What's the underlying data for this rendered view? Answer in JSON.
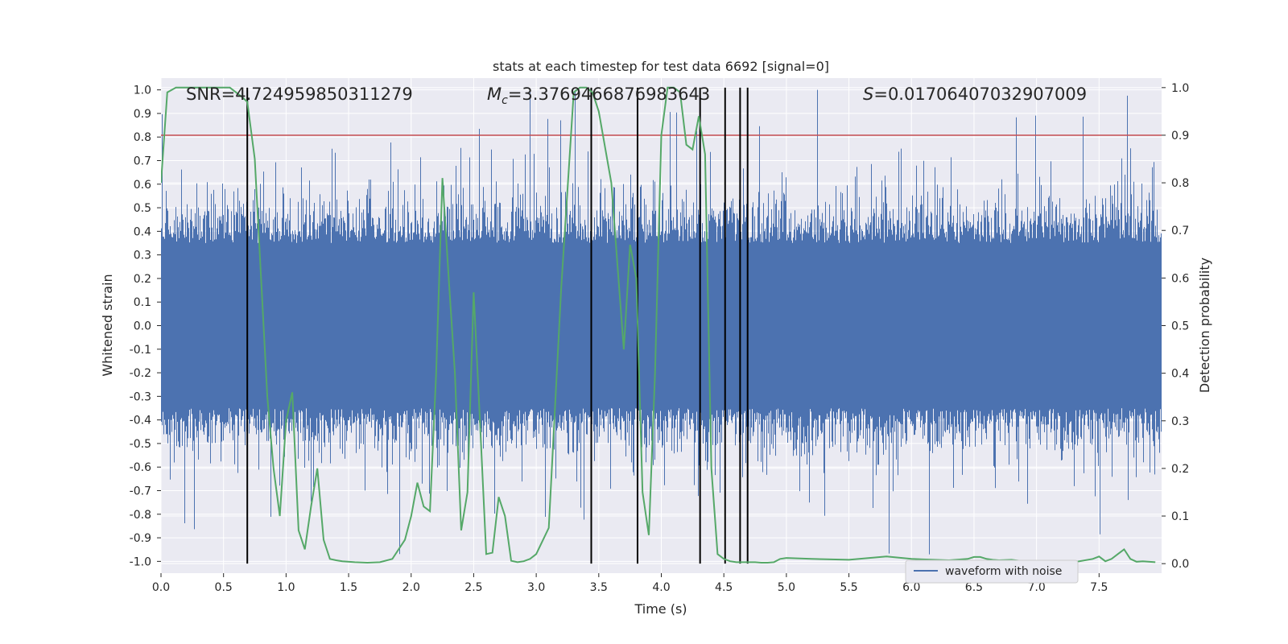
{
  "chart_data": {
    "type": "line",
    "title": "stats at each timestep for test data 6692 [signal=0]",
    "xlabel": "Time (s)",
    "ylabel_left": "Whitened strain",
    "ylabel_right": "Detection probability",
    "xlim": [
      0,
      8
    ],
    "ylim_left": [
      -1.05,
      1.05
    ],
    "ylim_right": [
      -0.02,
      1.02
    ],
    "x_ticks": [
      "0.0",
      "0.5",
      "1.0",
      "1.5",
      "2.0",
      "2.5",
      "3.0",
      "3.5",
      "4.0",
      "4.5",
      "5.0",
      "5.5",
      "6.0",
      "6.5",
      "7.0",
      "7.5"
    ],
    "y_ticks_left": [
      "1.0",
      "0.9",
      "0.8",
      "0.7",
      "0.6",
      "0.5",
      "0.4",
      "0.3",
      "0.2",
      "0.1",
      "0.0",
      "-0.1",
      "-0.2",
      "-0.3",
      "-0.4",
      "-0.5",
      "-0.6",
      "-0.7",
      "-0.8",
      "-0.9",
      "-1.0"
    ],
    "y_ticks_right": [
      "1.0",
      "0.9",
      "0.8",
      "0.7",
      "0.6",
      "0.5",
      "0.4",
      "0.3",
      "0.2",
      "0.1",
      "0.0"
    ],
    "annotations": {
      "snr_label": "SNR=4.724959850311279",
      "mc_symbol": "M",
      "mc_subscript": "c",
      "mc_value": "=3.3769466876983643",
      "s_symbol": "S",
      "s_value": "=0.01706407032907009"
    },
    "legend": {
      "label": "waveform with noise",
      "placement": "lower-right"
    },
    "colors": {
      "waveform": "#4c72b0",
      "probability": "#55a868",
      "threshold": "#c44e52",
      "marker": "#000000",
      "axes_bg": "#eaeaf2",
      "grid": "#ffffff"
    },
    "threshold_probability": 0.9,
    "detection_markers_s": [
      0.69,
      3.44,
      3.81,
      4.31,
      4.51,
      4.63,
      4.69
    ],
    "waveform": {
      "name": "waveform with noise",
      "typical_abs_amplitude": 0.35,
      "max_value": 1.0,
      "min_value": -0.97
    },
    "probability_series": {
      "name": "detection probability",
      "x": [
        0.0,
        0.05,
        0.12,
        0.25,
        0.4,
        0.55,
        0.65,
        0.69,
        0.75,
        0.8,
        0.85,
        0.9,
        0.95,
        1.0,
        1.05,
        1.1,
        1.15,
        1.2,
        1.25,
        1.3,
        1.35,
        1.4,
        1.45,
        1.55,
        1.65,
        1.75,
        1.85,
        1.95,
        2.0,
        2.05,
        2.1,
        2.15,
        2.2,
        2.25,
        2.3,
        2.35,
        2.4,
        2.45,
        2.5,
        2.55,
        2.6,
        2.65,
        2.7,
        2.75,
        2.8,
        2.85,
        2.9,
        2.95,
        3.0,
        3.1,
        3.2,
        3.3,
        3.35,
        3.4,
        3.45,
        3.5,
        3.6,
        3.7,
        3.75,
        3.8,
        3.85,
        3.9,
        3.95,
        4.0,
        4.05,
        4.1,
        4.15,
        4.2,
        4.25,
        4.3,
        4.35,
        4.4,
        4.45,
        4.5,
        4.55,
        4.6,
        4.65,
        4.7,
        4.75,
        4.8,
        4.85,
        4.9,
        4.95,
        5.0,
        5.2,
        5.5,
        5.8,
        6.0,
        6.3,
        6.45,
        6.5,
        6.55,
        6.6,
        6.65,
        6.7,
        6.8,
        6.9,
        7.0,
        7.3,
        7.45,
        7.5,
        7.55,
        7.6,
        7.65,
        7.7,
        7.75,
        7.8,
        7.85,
        7.95
      ],
      "values": [
        0.8,
        0.99,
        1.0,
        1.0,
        1.0,
        1.0,
        0.98,
        0.97,
        0.85,
        0.6,
        0.35,
        0.2,
        0.1,
        0.3,
        0.36,
        0.07,
        0.03,
        0.12,
        0.2,
        0.05,
        0.01,
        0.007,
        0.005,
        0.003,
        0.002,
        0.003,
        0.01,
        0.05,
        0.1,
        0.17,
        0.12,
        0.11,
        0.4,
        0.81,
        0.6,
        0.4,
        0.07,
        0.15,
        0.57,
        0.3,
        0.02,
        0.023,
        0.14,
        0.1,
        0.006,
        0.003,
        0.005,
        0.01,
        0.02,
        0.075,
        0.58,
        0.99,
        1.0,
        1.0,
        0.99,
        0.95,
        0.8,
        0.45,
        0.67,
        0.6,
        0.15,
        0.06,
        0.4,
        0.9,
        1.0,
        1.0,
        0.99,
        0.88,
        0.87,
        0.94,
        0.86,
        0.2,
        0.02,
        0.01,
        0.005,
        0.003,
        0.003,
        0.003,
        0.003,
        0.002,
        0.002,
        0.003,
        0.01,
        0.012,
        0.01,
        0.008,
        0.015,
        0.01,
        0.007,
        0.01,
        0.014,
        0.014,
        0.01,
        0.008,
        0.007,
        0.008,
        0.005,
        0.005,
        0.003,
        0.01,
        0.015,
        0.005,
        0.01,
        0.02,
        0.03,
        0.01,
        0.004,
        0.005,
        0.003
      ]
    }
  }
}
